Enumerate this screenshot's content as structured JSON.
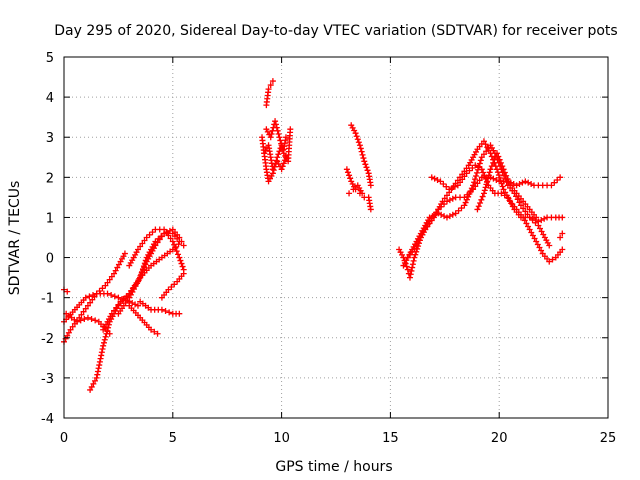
{
  "chart_data": {
    "type": "scatter",
    "title": "Day 295 of 2020, Sidereal Day-to-day VTEC variation (SDTVAR) for receiver pots",
    "xlabel": "GPS time / hours",
    "ylabel": "SDTVAR / TECUs",
    "xlim": [
      0,
      25
    ],
    "ylim": [
      -4,
      5
    ],
    "xticks": [
      0,
      5,
      10,
      15,
      20,
      25
    ],
    "yticks": [
      -4,
      -3,
      -2,
      -1,
      0,
      1,
      2,
      3,
      4,
      5
    ],
    "grid": true,
    "marker": "+",
    "series": [
      {
        "name": "SDTVAR",
        "color": "#ff0000",
        "segments": [
          [
            [
              0.0,
              -2.1
            ],
            [
              0.3,
              -1.8
            ],
            [
              0.7,
              -1.5
            ],
            [
              1.1,
              -1.2
            ],
            [
              1.5,
              -0.9
            ],
            [
              1.9,
              -0.7
            ],
            [
              2.3,
              -0.4
            ],
            [
              2.6,
              -0.1
            ],
            [
              2.8,
              0.1
            ]
          ],
          [
            [
              0.0,
              -1.6
            ],
            [
              0.5,
              -1.3
            ],
            [
              1.0,
              -1.0
            ],
            [
              1.5,
              -0.9
            ],
            [
              2.0,
              -0.9
            ],
            [
              2.5,
              -1.0
            ],
            [
              3.0,
              -1.1
            ],
            [
              3.4,
              -1.2
            ]
          ],
          [
            [
              0.0,
              -0.8
            ],
            [
              0.15,
              -0.85
            ]
          ],
          [
            [
              0.1,
              -1.4
            ],
            [
              0.6,
              -1.6
            ],
            [
              1.1,
              -1.5
            ],
            [
              1.6,
              -1.6
            ],
            [
              2.1,
              -1.9
            ]
          ],
          [
            [
              1.2,
              -3.3
            ],
            [
              1.5,
              -3.0
            ],
            [
              1.8,
              -2.2
            ],
            [
              2.1,
              -1.6
            ],
            [
              2.5,
              -1.2
            ],
            [
              3.0,
              -0.9
            ],
            [
              3.5,
              -0.5
            ],
            [
              3.8,
              0.0
            ],
            [
              4.2,
              0.4
            ],
            [
              4.6,
              0.6
            ],
            [
              5.0,
              0.6
            ],
            [
              5.3,
              0.4
            ],
            [
              5.5,
              0.3
            ]
          ],
          [
            [
              1.8,
              -1.8
            ],
            [
              2.2,
              -1.4
            ],
            [
              2.6,
              -1.1
            ],
            [
              3.0,
              -0.9
            ],
            [
              3.4,
              -0.6
            ],
            [
              3.8,
              -0.1
            ],
            [
              4.2,
              0.3
            ],
            [
              4.6,
              0.6
            ],
            [
              5.0,
              0.7
            ],
            [
              5.3,
              0.5
            ]
          ],
          [
            [
              3.0,
              -0.2
            ],
            [
              3.4,
              0.2
            ],
            [
              3.8,
              0.5
            ],
            [
              4.2,
              0.7
            ],
            [
              4.6,
              0.7
            ],
            [
              5.0,
              0.4
            ],
            [
              5.3,
              0.0
            ],
            [
              5.5,
              -0.3
            ]
          ],
          [
            [
              2.5,
              -1.4
            ],
            [
              3.0,
              -1.0
            ],
            [
              3.5,
              -0.5
            ],
            [
              4.0,
              -0.2
            ],
            [
              4.5,
              0.0
            ],
            [
              5.0,
              0.2
            ],
            [
              5.4,
              0.4
            ]
          ],
          [
            [
              3.0,
              -1.2
            ],
            [
              3.5,
              -1.5
            ],
            [
              4.0,
              -1.8
            ],
            [
              4.3,
              -1.9
            ]
          ],
          [
            [
              3.5,
              -1.1
            ],
            [
              4.0,
              -1.3
            ],
            [
              4.5,
              -1.3
            ],
            [
              5.0,
              -1.4
            ],
            [
              5.3,
              -1.4
            ]
          ],
          [
            [
              4.5,
              -1.0
            ],
            [
              4.8,
              -0.8
            ],
            [
              5.2,
              -0.6
            ],
            [
              5.5,
              -0.4
            ]
          ],
          [
            [
              9.3,
              3.8
            ],
            [
              9.4,
              4.2
            ],
            [
              9.5,
              4.3
            ],
            [
              9.6,
              4.4
            ]
          ],
          [
            [
              9.1,
              3.0
            ],
            [
              9.2,
              2.6
            ],
            [
              9.3,
              2.2
            ],
            [
              9.4,
              1.9
            ],
            [
              9.6,
              2.1
            ],
            [
              9.8,
              2.5
            ],
            [
              10.0,
              2.8
            ],
            [
              10.1,
              2.7
            ],
            [
              10.2,
              3.0
            ]
          ],
          [
            [
              9.3,
              3.2
            ],
            [
              9.5,
              3.0
            ],
            [
              9.7,
              3.4
            ],
            [
              9.9,
              3.0
            ],
            [
              10.1,
              2.6
            ],
            [
              10.3,
              2.4
            ],
            [
              10.4,
              3.2
            ]
          ],
          [
            [
              9.2,
              2.6
            ],
            [
              9.4,
              2.8
            ],
            [
              9.6,
              2.2
            ],
            [
              9.8,
              2.4
            ],
            [
              10.0,
              2.2
            ],
            [
              10.2,
              2.5
            ]
          ],
          [
            [
              13.2,
              3.3
            ],
            [
              13.4,
              3.1
            ],
            [
              13.6,
              2.8
            ],
            [
              13.8,
              2.4
            ],
            [
              14.0,
              2.1
            ],
            [
              14.1,
              1.8
            ]
          ],
          [
            [
              13.0,
              2.2
            ],
            [
              13.2,
              1.9
            ],
            [
              13.4,
              1.7
            ],
            [
              13.6,
              1.6
            ],
            [
              13.8,
              1.5
            ],
            [
              14.0,
              1.5
            ],
            [
              14.1,
              1.2
            ]
          ],
          [
            [
              13.1,
              1.6
            ],
            [
              13.3,
              1.7
            ],
            [
              13.5,
              1.8
            ],
            [
              13.7,
              1.6
            ]
          ],
          [
            [
              15.4,
              0.2
            ],
            [
              15.6,
              0.0
            ],
            [
              15.8,
              -0.3
            ],
            [
              15.9,
              -0.5
            ],
            [
              16.1,
              0.0
            ],
            [
              16.4,
              0.5
            ],
            [
              16.8,
              0.9
            ],
            [
              17.2,
              1.2
            ],
            [
              17.6,
              1.4
            ],
            [
              18.0,
              1.5
            ],
            [
              18.4,
              1.5
            ],
            [
              18.8,
              1.7
            ],
            [
              19.2,
              2.0
            ],
            [
              19.6,
              2.0
            ],
            [
              20.0,
              1.9
            ],
            [
              20.4,
              1.9
            ],
            [
              20.8,
              1.8
            ],
            [
              21.2,
              1.9
            ],
            [
              21.6,
              1.8
            ],
            [
              22.0,
              1.8
            ],
            [
              22.4,
              1.8
            ],
            [
              22.8,
              2.0
            ]
          ],
          [
            [
              15.6,
              -0.2
            ],
            [
              16.0,
              0.2
            ],
            [
              16.4,
              0.6
            ],
            [
              16.8,
              1.0
            ],
            [
              17.2,
              1.1
            ],
            [
              17.6,
              1.0
            ],
            [
              18.0,
              1.1
            ],
            [
              18.4,
              1.3
            ],
            [
              18.8,
              1.8
            ],
            [
              19.2,
              2.5
            ],
            [
              19.6,
              2.8
            ],
            [
              19.8,
              2.6
            ],
            [
              20.1,
              2.2
            ],
            [
              20.4,
              1.8
            ],
            [
              20.7,
              1.6
            ],
            [
              21.0,
              1.3
            ],
            [
              21.4,
              1.0
            ],
            [
              21.8,
              0.8
            ],
            [
              22.1,
              0.5
            ],
            [
              22.3,
              0.3
            ]
          ],
          [
            [
              15.8,
              0.0
            ],
            [
              16.2,
              0.3
            ],
            [
              16.6,
              0.7
            ],
            [
              17.0,
              1.0
            ],
            [
              17.4,
              1.4
            ],
            [
              17.8,
              1.7
            ],
            [
              18.2,
              2.0
            ],
            [
              18.6,
              2.3
            ],
            [
              19.0,
              2.7
            ],
            [
              19.3,
              2.9
            ],
            [
              19.6,
              2.6
            ],
            [
              19.9,
              2.2
            ],
            [
              20.2,
              1.7
            ],
            [
              20.5,
              1.4
            ],
            [
              20.8,
              1.2
            ],
            [
              21.1,
              1.0
            ],
            [
              21.4,
              0.7
            ],
            [
              21.7,
              0.4
            ],
            [
              22.0,
              0.1
            ],
            [
              22.3,
              -0.1
            ],
            [
              22.6,
              0.0
            ],
            [
              22.9,
              0.2
            ]
          ],
          [
            [
              16.9,
              2.0
            ],
            [
              17.3,
              1.9
            ],
            [
              17.7,
              1.7
            ],
            [
              18.1,
              1.8
            ],
            [
              18.5,
              2.1
            ],
            [
              18.9,
              2.3
            ],
            [
              19.2,
              2.2
            ],
            [
              19.5,
              1.8
            ],
            [
              19.8,
              1.6
            ],
            [
              20.1,
              1.6
            ],
            [
              20.4,
              1.5
            ],
            [
              20.7,
              1.2
            ],
            [
              21.0,
              1.0
            ],
            [
              21.4,
              1.0
            ],
            [
              21.8,
              0.9
            ],
            [
              22.2,
              1.0
            ],
            [
              22.6,
              1.0
            ],
            [
              22.9,
              1.0
            ]
          ],
          [
            [
              19.0,
              1.2
            ],
            [
              19.3,
              1.6
            ],
            [
              19.6,
              2.2
            ],
            [
              19.9,
              2.6
            ],
            [
              20.2,
              2.2
            ],
            [
              20.5,
              1.8
            ],
            [
              20.8,
              1.6
            ],
            [
              21.1,
              1.4
            ],
            [
              21.4,
              1.2
            ],
            [
              21.7,
              1.0
            ]
          ],
          [
            [
              22.8,
              0.5
            ],
            [
              22.9,
              0.6
            ]
          ]
        ]
      }
    ]
  }
}
